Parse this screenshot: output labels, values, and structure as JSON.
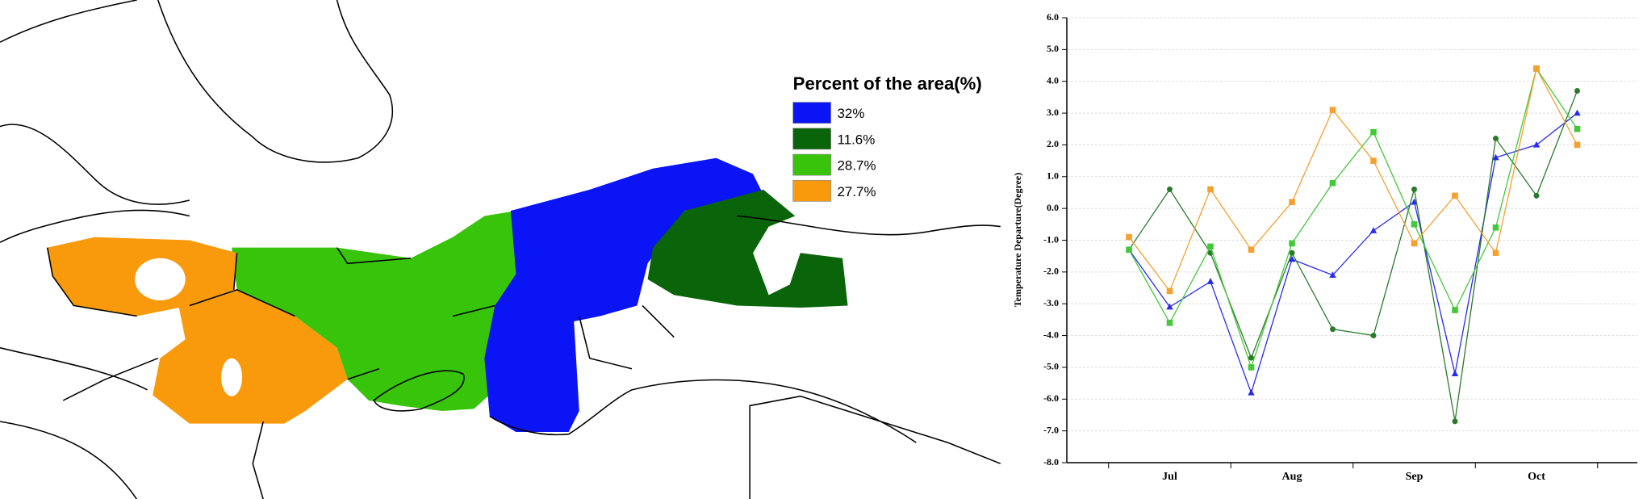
{
  "map": {
    "legend_title": "Percent of the area(%)",
    "legend": [
      {
        "label": "32%",
        "color": "#0a14f5"
      },
      {
        "label": "11.6%",
        "color": "#0a640a"
      },
      {
        "label": "28.7%",
        "color": "#38c40a"
      },
      {
        "label": "27.7%",
        "color": "#f89a0c"
      }
    ]
  },
  "chart_data": {
    "type": "line",
    "y_label": "Temperature Departure(Degree)",
    "categories": [
      null,
      "Jul",
      null,
      null,
      "Aug",
      null,
      null,
      "Sep",
      null,
      null,
      "Oct",
      null
    ],
    "series": [
      {
        "color": "#2a2af0",
        "marker": "triangle",
        "values": [
          -1.3,
          -3.1,
          -2.3,
          -5.8,
          -1.6,
          -2.1,
          -0.7,
          0.2,
          -5.2,
          1.6,
          2.0,
          3.0
        ]
      },
      {
        "color": "#2a7a2a",
        "marker": "circle",
        "values": [
          -1.3,
          0.6,
          -1.4,
          -4.7,
          -1.4,
          -3.8,
          -4.0,
          0.6,
          -6.7,
          2.2,
          0.4,
          3.7
        ]
      },
      {
        "color": "#44c83a",
        "marker": "square",
        "values": [
          -1.3,
          -3.6,
          -1.2,
          -5.0,
          -1.1,
          0.8,
          2.4,
          -0.5,
          -3.2,
          -0.6,
          4.4,
          2.5
        ]
      },
      {
        "color": "#f5a030",
        "marker": "square",
        "values": [
          -0.9,
          -2.6,
          0.6,
          -1.3,
          0.2,
          3.1,
          1.5,
          -1.1,
          0.4,
          -1.4,
          4.4,
          2.0
        ]
      }
    ],
    "ylim": [
      -8,
      6
    ],
    "yticks": [
      {
        "value": 6,
        "label": "6.0"
      },
      {
        "value": 5,
        "label": "5.0"
      },
      {
        "value": 4,
        "label": "4.0"
      },
      {
        "value": 3,
        "label": "3.0"
      },
      {
        "value": 2,
        "label": "2.0"
      },
      {
        "value": 1,
        "label": "1.0"
      },
      {
        "value": 0,
        "label": "0.0"
      },
      {
        "value": -1,
        "label": "-1.0"
      },
      {
        "value": -2,
        "label": "-2.0"
      },
      {
        "value": -3,
        "label": "-3.0"
      },
      {
        "value": -4,
        "label": "-4.0"
      },
      {
        "value": -5,
        "label": "-5.0"
      },
      {
        "value": -6,
        "label": "-6.0"
      },
      {
        "value": -7,
        "label": "-7.0"
      },
      {
        "value": -8,
        "label": "-8.0"
      }
    ],
    "grid": true
  }
}
